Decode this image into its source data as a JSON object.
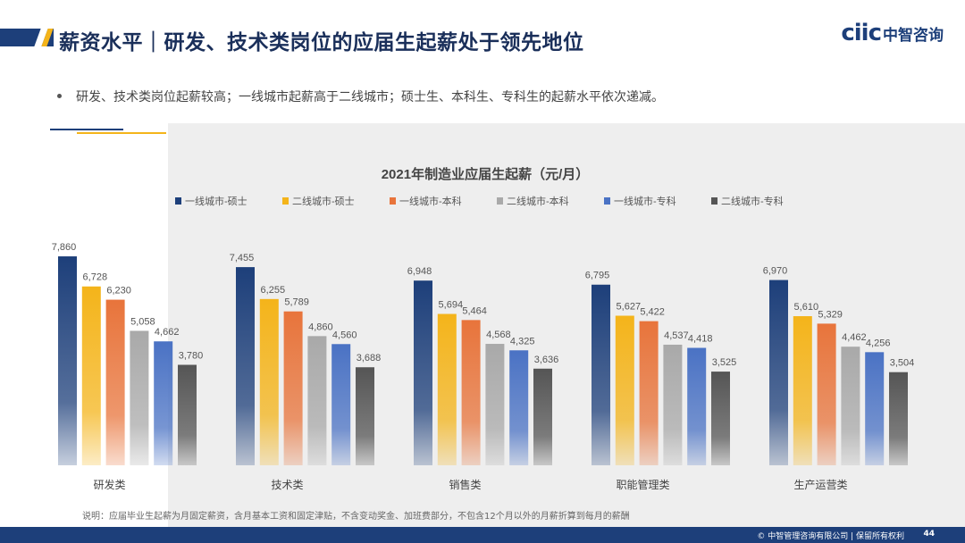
{
  "header": {
    "title": "薪资水平｜研发、技术类岗位的应届生起薪处于领先地位",
    "logo_mark": "ciic",
    "logo_text": "中智咨询"
  },
  "bullet": {
    "text": "研发、技术类岗位起薪较高；一线城市起薪高于二线城市；硕士生、本科生、专科生的起薪水平依次递减。"
  },
  "chart_data": {
    "type": "bar",
    "title": "2021年制造业应届生起薪（元/月）",
    "categories": [
      "研发类",
      "技术类",
      "销售类",
      "职能管理类",
      "生产运营类"
    ],
    "series": [
      {
        "name": "一线城市-硕士",
        "color": "#1d3f7a",
        "values": [
          7860,
          7455,
          6948,
          6795,
          6970
        ],
        "labels": [
          "7,860",
          "7,455",
          "6,948",
          "6,795",
          "6,970"
        ]
      },
      {
        "name": "二线城市-硕士",
        "color": "#f4b41a",
        "values": [
          6728,
          6255,
          5694,
          5627,
          5610
        ],
        "labels": [
          "6,728",
          "6,255",
          "5,694",
          "5,627",
          "5,610"
        ]
      },
      {
        "name": "一线城市-本科",
        "color": "#e8743b",
        "values": [
          6230,
          5789,
          5464,
          5422,
          5329
        ],
        "labels": [
          "6,230",
          "5,789",
          "5,464",
          "5,422",
          "5,329"
        ]
      },
      {
        "name": "二线城市-本科",
        "color": "#a9a9a9",
        "values": [
          5058,
          4860,
          4568,
          4537,
          4462
        ],
        "labels": [
          "5,058",
          "4,860",
          "4,568",
          "4,537",
          "4,462"
        ]
      },
      {
        "name": "一线城市-专科",
        "color": "#4a72c4",
        "values": [
          4662,
          4560,
          4325,
          4418,
          4256
        ],
        "labels": [
          "4,662",
          "4,560",
          "4,325",
          "4,418",
          "4,256"
        ]
      },
      {
        "name": "二线城市-专科",
        "color": "#555555",
        "values": [
          3780,
          3688,
          3636,
          3525,
          3504
        ],
        "labels": [
          "3,780",
          "3,688",
          "3,636",
          "3,525",
          "3,504"
        ]
      }
    ],
    "ylim": [
      0,
      8500
    ],
    "legend": "top"
  },
  "note": {
    "text": "说明：应届毕业生起薪为月固定薪资，含月基本工资和固定津贴，不含变动奖金、加班费部分，不包含12个月以外的月薪折算到每月的薪酬"
  },
  "footer": {
    "copyright": "© 中智管理咨询有限公司 | 保留所有权利",
    "page_number": "44"
  }
}
